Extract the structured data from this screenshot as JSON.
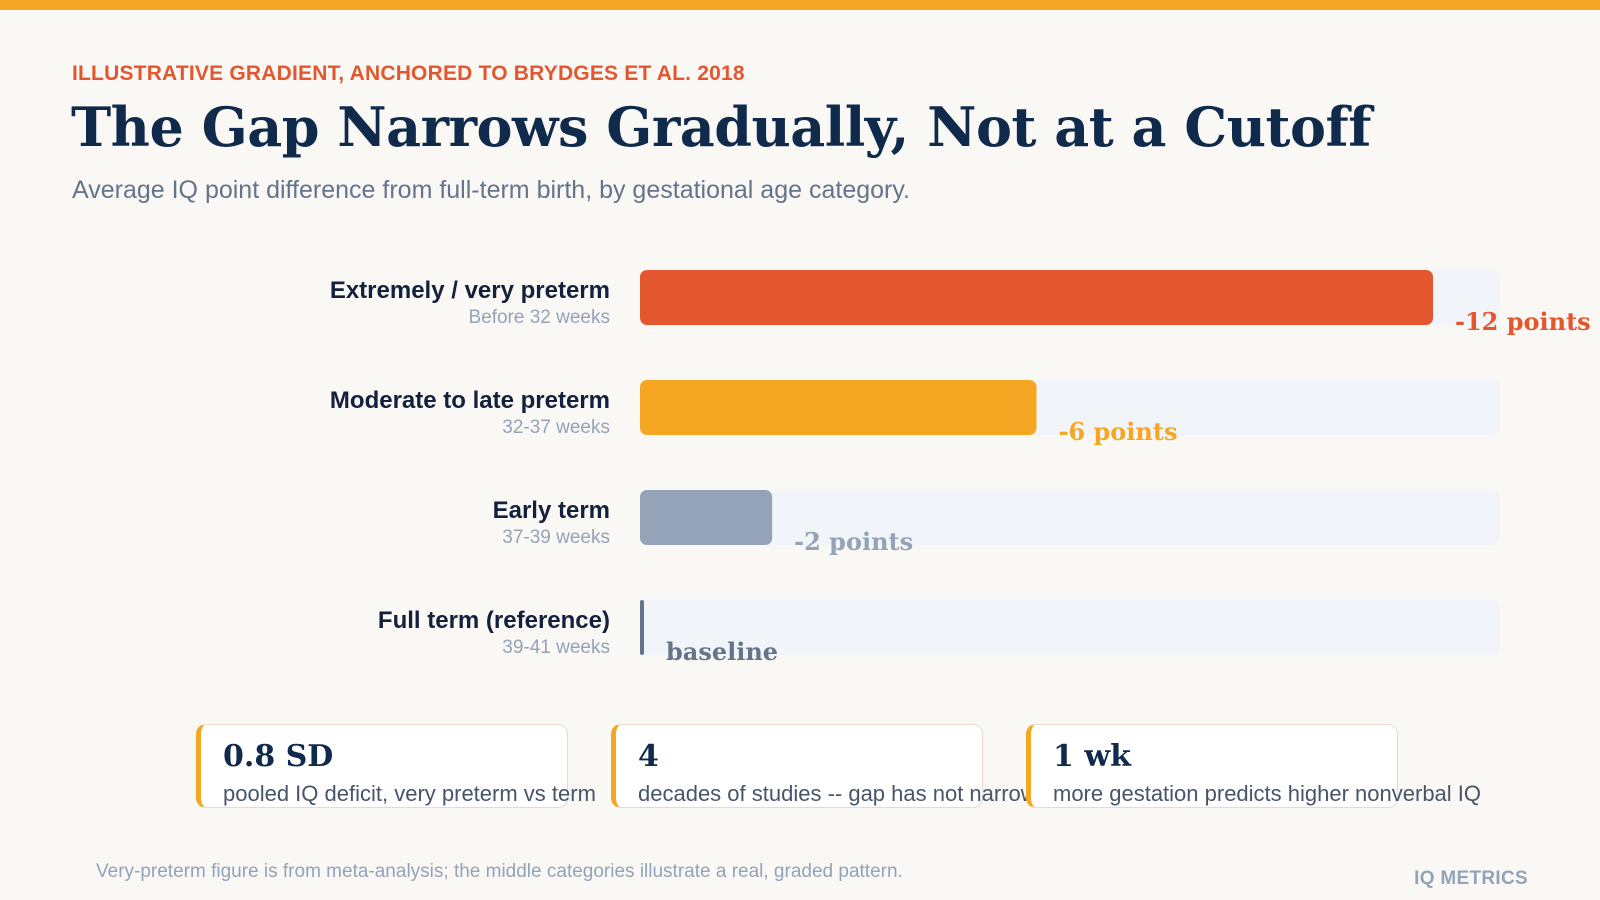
{
  "header": {
    "eyebrow": "ILLUSTRATIVE GRADIENT, ANCHORED TO BRYDGES ET AL. 2018",
    "title": "The Gap Narrows Gradually, Not at a Cutoff",
    "subtitle": "Average IQ point difference from full-term birth, by gestational age category."
  },
  "chart_data": {
    "type": "bar",
    "orientation": "horizontal",
    "xlim": [
      0,
      13
    ],
    "grid": false,
    "legend": "none",
    "categories": [
      {
        "label": "Extremely / very preterm",
        "sublabel": "Before 32 weeks",
        "value": 12,
        "value_label": "-12 points",
        "color": "#e4572e"
      },
      {
        "label": "Moderate to late preterm",
        "sublabel": "32-37 weeks",
        "value": 6,
        "value_label": "-6 points",
        "color": "#f5a623"
      },
      {
        "label": "Early term",
        "sublabel": "37-39 weeks",
        "value": 2,
        "value_label": "-2 points",
        "color": "#94a3b8"
      },
      {
        "label": "Full term (reference)",
        "sublabel": "39-41 weeks",
        "value": 0,
        "value_label": "baseline",
        "color": "#64748b"
      }
    ],
    "track_color": "#f1f4f8"
  },
  "stats": [
    {
      "value": "0.8 SD",
      "desc": "pooled IQ deficit, very preterm vs term"
    },
    {
      "value": "4",
      "desc": "decades of studies -- gap has not narrowed"
    },
    {
      "value": "1 wk",
      "desc": "more gestation predicts higher nonverbal IQ"
    }
  ],
  "footer": {
    "note": "Very-preterm figure is from meta-analysis; the middle categories illustrate a real, graded pattern.",
    "brand": "IQ METRICS"
  },
  "colors": {
    "accent": "#f5a623",
    "brand_red": "#e4572e",
    "navy": "#102a4c"
  }
}
